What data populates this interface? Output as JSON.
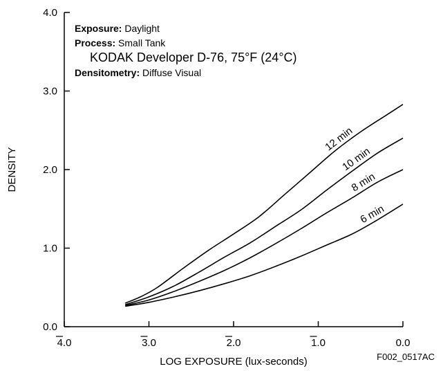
{
  "chart_data": {
    "type": "line",
    "ylabel": "DENSITY",
    "xlabel": "LOG EXPOSURE (lux-seconds)",
    "xlim": [
      -4.0,
      0.0
    ],
    "ylim": [
      0.0,
      4.0
    ],
    "x_ticks": [
      {
        "value": -4.0,
        "label": "4.0",
        "bar": true
      },
      {
        "value": -3.0,
        "label": "3.0",
        "bar": true
      },
      {
        "value": -2.0,
        "label": "2.0",
        "bar": true
      },
      {
        "value": -1.0,
        "label": "1.0",
        "bar": true
      },
      {
        "value": 0.0,
        "label": "0.0",
        "bar": false
      }
    ],
    "y_ticks": [
      {
        "value": 0.0,
        "label": "0.0"
      },
      {
        "value": 1.0,
        "label": "1.0"
      },
      {
        "value": 2.0,
        "label": "2.0"
      },
      {
        "value": 3.0,
        "label": "3.0"
      },
      {
        "value": 4.0,
        "label": "4.0"
      }
    ],
    "annotations": [
      {
        "bold": "Exposure:",
        "text": "Daylight"
      },
      {
        "bold": "Process:",
        "text": "Small Tank"
      },
      {
        "bold": "",
        "text": "KODAK Developer D-76,  75°F (24°C)"
      },
      {
        "bold": "Densitometry:",
        "text": "Diffuse Visual"
      }
    ],
    "figure_code": "F002_0517AC",
    "series": [
      {
        "name": "12 min",
        "x": [
          -3.28,
          -3.1,
          -2.9,
          -2.6,
          -2.3,
          -2.0,
          -1.7,
          -1.4,
          -1.1,
          -0.8,
          -0.5,
          -0.2,
          0.0
        ],
        "y": [
          0.3,
          0.38,
          0.5,
          0.74,
          0.97,
          1.18,
          1.4,
          1.68,
          1.96,
          2.24,
          2.48,
          2.69,
          2.83
        ]
      },
      {
        "name": "10 min",
        "x": [
          -3.28,
          -3.0,
          -2.7,
          -2.4,
          -2.1,
          -1.8,
          -1.5,
          -1.2,
          -0.9,
          -0.6,
          -0.3,
          0.0
        ],
        "y": [
          0.28,
          0.38,
          0.52,
          0.7,
          0.89,
          1.07,
          1.28,
          1.49,
          1.74,
          1.98,
          2.21,
          2.4
        ]
      },
      {
        "name": "8 min",
        "x": [
          -3.28,
          -3.0,
          -2.7,
          -2.4,
          -2.1,
          -1.8,
          -1.5,
          -1.2,
          -0.9,
          -0.6,
          -0.3,
          0.0
        ],
        "y": [
          0.27,
          0.34,
          0.45,
          0.58,
          0.72,
          0.88,
          1.06,
          1.25,
          1.45,
          1.64,
          1.84,
          2.0
        ]
      },
      {
        "name": "6 min",
        "x": [
          -3.28,
          -3.0,
          -2.7,
          -2.4,
          -2.1,
          -1.8,
          -1.5,
          -1.2,
          -0.9,
          -0.6,
          -0.3,
          0.0
        ],
        "y": [
          0.26,
          0.31,
          0.38,
          0.46,
          0.55,
          0.65,
          0.77,
          0.9,
          1.04,
          1.18,
          1.36,
          1.56
        ]
      }
    ]
  }
}
